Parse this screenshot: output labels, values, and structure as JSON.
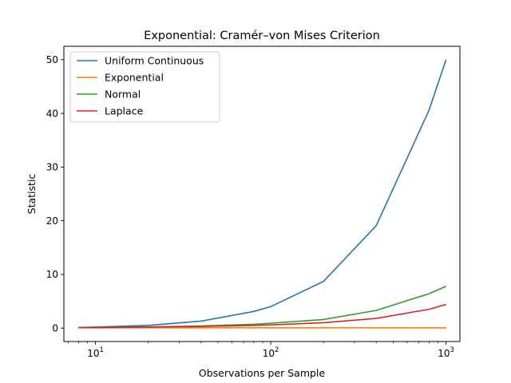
{
  "chart_data": {
    "type": "line",
    "title": "Exponential: Cramér–von Mises Criterion",
    "xlabel": "Observations per Sample",
    "ylabel": "Statistic",
    "xscale": "log",
    "xlim": [
      6.6,
      1200
    ],
    "ylim": [
      -2.5,
      52.5
    ],
    "x_ticks": [
      {
        "value": 10,
        "base": "10",
        "exp": "1"
      },
      {
        "value": 100,
        "base": "10",
        "exp": "2"
      },
      {
        "value": 1000,
        "base": "10",
        "exp": "3"
      }
    ],
    "y_ticks": [
      0,
      10,
      20,
      30,
      40,
      50
    ],
    "y_tick_labels": [
      "0",
      "10",
      "20",
      "30",
      "40",
      "50"
    ],
    "grid": false,
    "legend_position": "top-left",
    "x": [
      8,
      10,
      20,
      40,
      80,
      100,
      200,
      400,
      800,
      1000
    ],
    "series": [
      {
        "name": "Uniform Continuous",
        "color": "#1f77b4",
        "values": [
          0.1,
          0.2,
          0.5,
          1.3,
          3.1,
          4.0,
          8.7,
          19.1,
          40.6,
          50.0
        ]
      },
      {
        "name": "Exponential",
        "color": "#ff7f0e",
        "values": [
          0.05,
          0.05,
          0.05,
          0.05,
          0.05,
          0.05,
          0.05,
          0.05,
          0.05,
          0.05
        ]
      },
      {
        "name": "Normal",
        "color": "#2ca02c",
        "values": [
          0.1,
          0.1,
          0.2,
          0.4,
          0.7,
          0.9,
          1.6,
          3.3,
          6.4,
          7.8
        ]
      },
      {
        "name": "Laplace",
        "color": "#d62728",
        "values": [
          0.1,
          0.1,
          0.2,
          0.3,
          0.5,
          0.6,
          1.0,
          1.8,
          3.5,
          4.4
        ]
      }
    ]
  }
}
